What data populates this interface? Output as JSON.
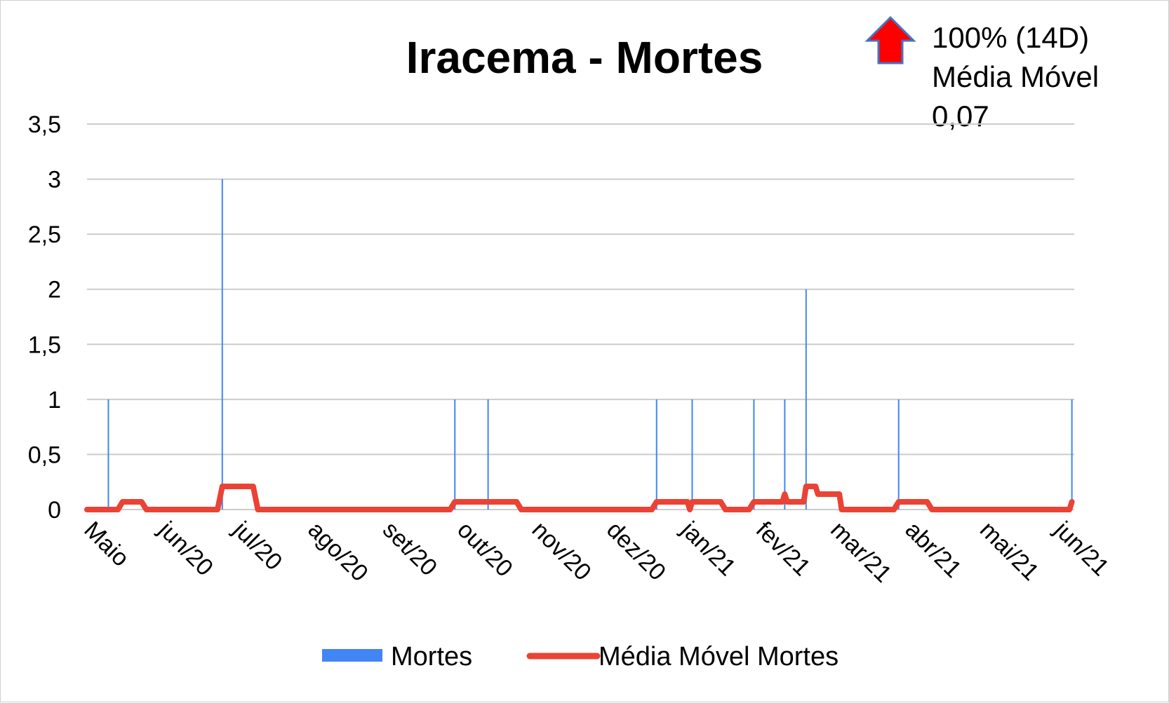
{
  "chart_data": {
    "type": "line",
    "title": "Iracema - Mortes",
    "xlabel": "",
    "ylabel": "",
    "ylim": [
      0,
      3.5
    ],
    "yticks": [
      "0",
      "0,5",
      "1",
      "1,5",
      "2",
      "2,5",
      "3",
      "3,5"
    ],
    "grid": true,
    "legend_position": "bottom",
    "x_categories": [
      "Maio",
      "jun/20",
      "jul/20",
      "ago/20",
      "set/20",
      "out/20",
      "nov/20",
      "dez/20",
      "jan/21",
      "fev/21",
      "mar/21",
      "abr/21",
      "mai/21",
      "jun/21"
    ],
    "x_range": [
      "2020-04-27",
      "2021-06-17"
    ],
    "series": [
      {
        "name": "Mortes",
        "type": "bar",
        "color": "#4285f4",
        "points": [
          {
            "date": "2020-05-06",
            "value": 1
          },
          {
            "date": "2020-06-23",
            "value": 3
          },
          {
            "date": "2020-09-29",
            "value": 1
          },
          {
            "date": "2020-10-13",
            "value": 1
          },
          {
            "date": "2020-12-23",
            "value": 1
          },
          {
            "date": "2021-01-07",
            "value": 1
          },
          {
            "date": "2021-02-02",
            "value": 1
          },
          {
            "date": "2021-02-15",
            "value": 1
          },
          {
            "date": "2021-02-24",
            "value": 2
          },
          {
            "date": "2021-04-04",
            "value": 1
          },
          {
            "date": "2021-06-16",
            "value": 1
          }
        ]
      },
      {
        "name": "Média Móvel Mortes",
        "type": "line",
        "color": "#ea4335",
        "points": [
          {
            "date": "2020-04-27",
            "value": 0
          },
          {
            "date": "2020-05-10",
            "value": 0
          },
          {
            "date": "2020-05-12",
            "value": 0.07
          },
          {
            "date": "2020-05-20",
            "value": 0.07
          },
          {
            "date": "2020-05-22",
            "value": 0
          },
          {
            "date": "2020-06-21",
            "value": 0
          },
          {
            "date": "2020-06-23",
            "value": 0.21
          },
          {
            "date": "2020-07-06",
            "value": 0.21
          },
          {
            "date": "2020-07-08",
            "value": 0
          },
          {
            "date": "2020-09-27",
            "value": 0
          },
          {
            "date": "2020-09-29",
            "value": 0.07
          },
          {
            "date": "2020-10-25",
            "value": 0.07
          },
          {
            "date": "2020-10-27",
            "value": 0
          },
          {
            "date": "2020-12-21",
            "value": 0
          },
          {
            "date": "2020-12-23",
            "value": 0.07
          },
          {
            "date": "2021-01-05",
            "value": 0.07
          },
          {
            "date": "2021-01-06",
            "value": 0
          },
          {
            "date": "2021-01-07",
            "value": 0.07
          },
          {
            "date": "2021-01-19",
            "value": 0.07
          },
          {
            "date": "2021-01-21",
            "value": 0
          },
          {
            "date": "2021-01-31",
            "value": 0
          },
          {
            "date": "2021-02-02",
            "value": 0.07
          },
          {
            "date": "2021-02-14",
            "value": 0.07
          },
          {
            "date": "2021-02-15",
            "value": 0.14
          },
          {
            "date": "2021-02-16",
            "value": 0.07
          },
          {
            "date": "2021-02-23",
            "value": 0.07
          },
          {
            "date": "2021-02-24",
            "value": 0.21
          },
          {
            "date": "2021-02-28",
            "value": 0.21
          },
          {
            "date": "2021-03-01",
            "value": 0.14
          },
          {
            "date": "2021-03-10",
            "value": 0.14
          },
          {
            "date": "2021-03-11",
            "value": 0
          },
          {
            "date": "2021-04-02",
            "value": 0
          },
          {
            "date": "2021-04-04",
            "value": 0.07
          },
          {
            "date": "2021-04-16",
            "value": 0.07
          },
          {
            "date": "2021-04-18",
            "value": 0
          },
          {
            "date": "2021-06-15",
            "value": 0
          },
          {
            "date": "2021-06-16",
            "value": 0.07
          }
        ]
      }
    ],
    "annotation": {
      "lines": [
        "100% (14D)",
        "Média Móvel",
        "0,07"
      ],
      "arrow_direction": "up",
      "arrow_color": "#ff0000",
      "arrow_outline": "#4472c4"
    }
  }
}
